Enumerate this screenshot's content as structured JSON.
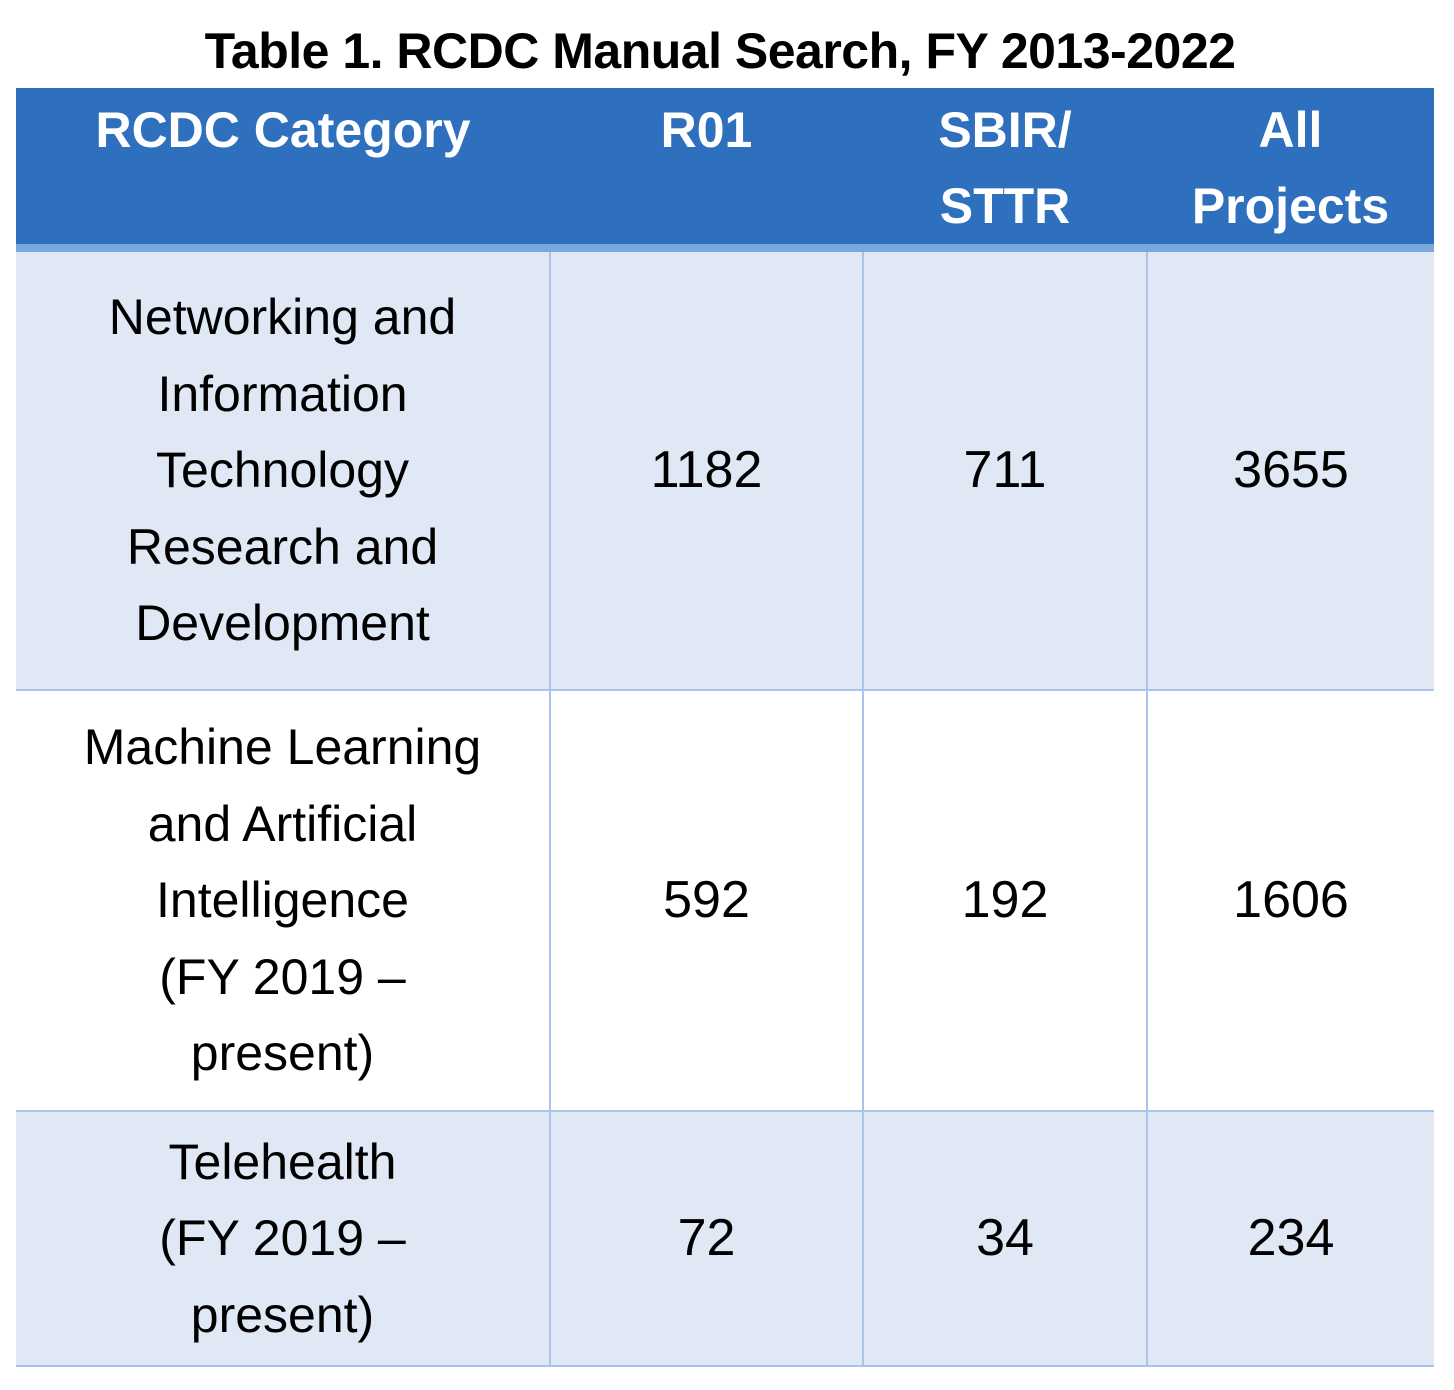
{
  "caption": "Table 1. RCDC Manual Search, FY 2013-2022",
  "headers": {
    "category": "RCDC Category",
    "r01": "R01",
    "sbir_line1": "SBIR/",
    "sbir_line2": "STTR",
    "all_line1": "All",
    "all_line2": "Projects"
  },
  "rows": [
    {
      "category_lines": [
        "Networking and",
        "Information",
        "Technology",
        "Research and",
        "Development"
      ],
      "r01": "1182",
      "sbir_sttr": "711",
      "all_projects": "3655"
    },
    {
      "category_lines": [
        "Machine Learning",
        "and Artificial",
        "Intelligence",
        "(FY 2019 –",
        "present)"
      ],
      "r01": "592",
      "sbir_sttr": "192",
      "all_projects": "1606"
    },
    {
      "category_lines": [
        "Telehealth",
        "(FY 2019 –",
        "present)"
      ],
      "r01": "72",
      "sbir_sttr": "34",
      "all_projects": "234"
    }
  ],
  "colors": {
    "header_bg": "#2e6fbe",
    "header_text": "#ffffff",
    "band_bg": "#dfe8f4",
    "rule": "#a9c3ea"
  }
}
